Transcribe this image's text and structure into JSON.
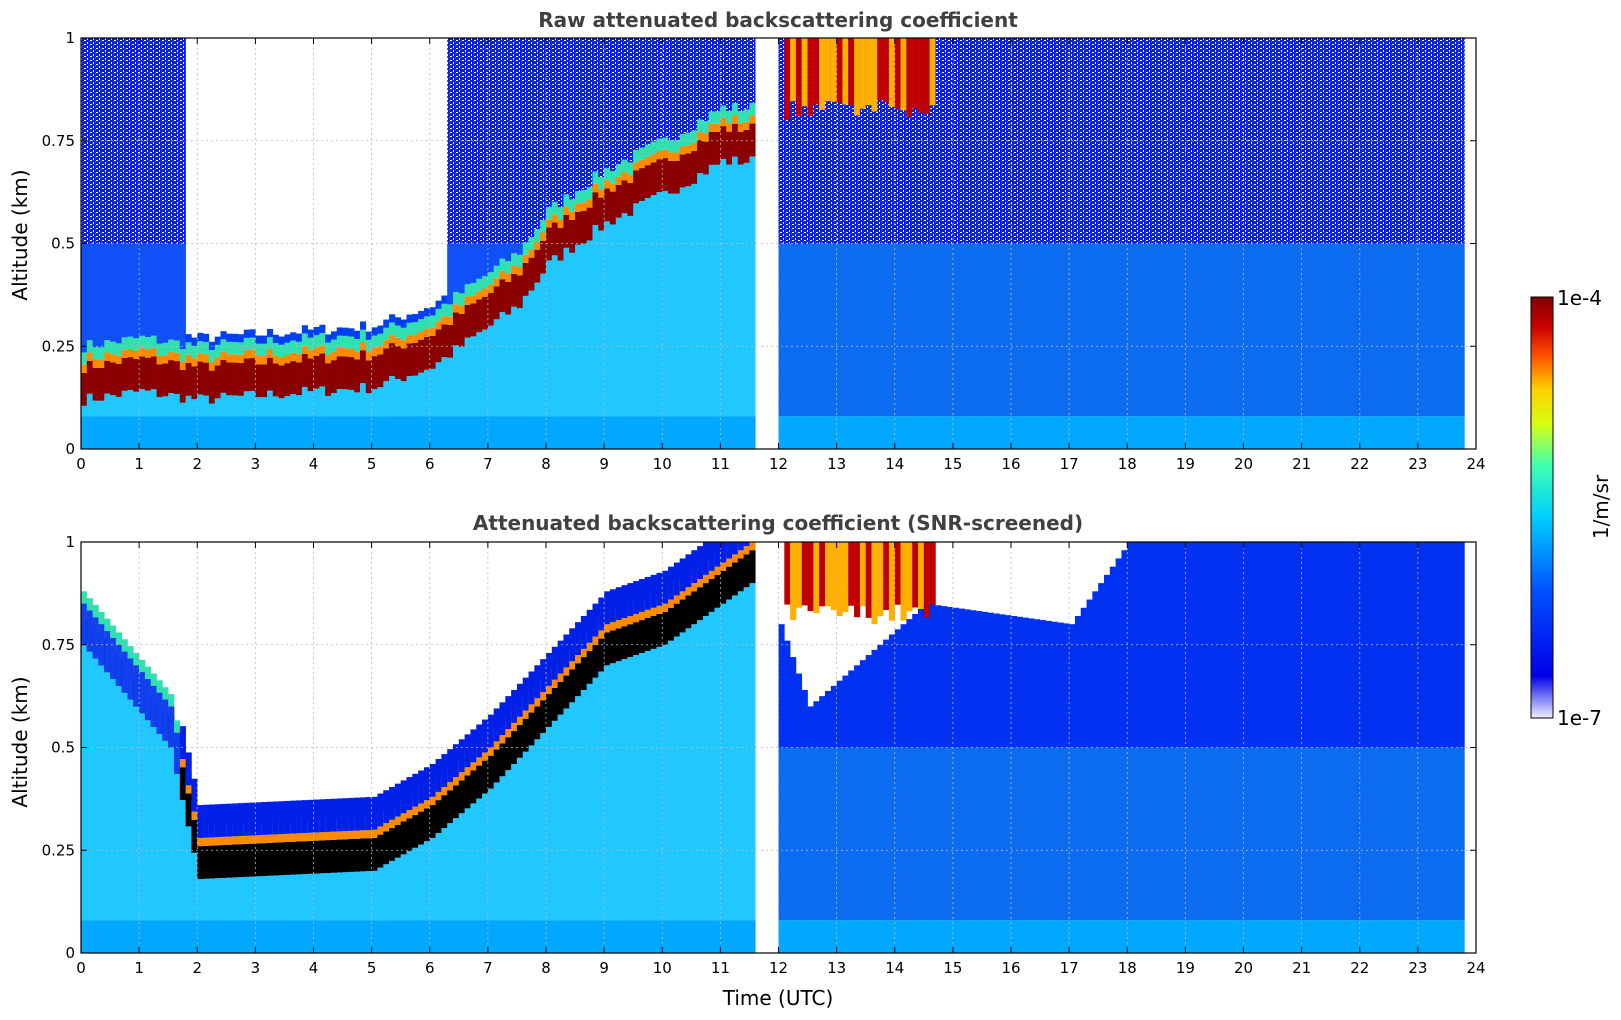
{
  "chart_data": [
    {
      "type": "heatmap",
      "title": "Raw attenuated backscattering coefficient",
      "xlabel": "",
      "ylabel": "Altitude (km)",
      "xlim": [
        0,
        24
      ],
      "ylim": [
        0,
        1
      ],
      "x_ticks": [
        "0",
        "1",
        "2",
        "3",
        "4",
        "5",
        "6",
        "7",
        "8",
        "9",
        "10",
        "11",
        "12",
        "13",
        "14",
        "15",
        "16",
        "17",
        "18",
        "19",
        "20",
        "21",
        "22",
        "23",
        "24"
      ],
      "y_ticks": [
        "0",
        "0.25",
        "0.5",
        "0.75",
        "1"
      ],
      "grid": true,
      "x_unit": "hours UTC",
      "data_gap_utc": [
        11.6,
        11.95
      ],
      "data_end_utc": 23.8,
      "layer_top_km": [
        {
          "time_utc": 0.0,
          "altitude_km": 0.22
        },
        {
          "time_utc": 1.0,
          "altitude_km": 0.24
        },
        {
          "time_utc": 2.0,
          "altitude_km": 0.22
        },
        {
          "time_utc": 3.0,
          "altitude_km": 0.23
        },
        {
          "time_utc": 4.0,
          "altitude_km": 0.24
        },
        {
          "time_utc": 5.0,
          "altitude_km": 0.25
        },
        {
          "time_utc": 6.0,
          "altitude_km": 0.3
        },
        {
          "time_utc": 7.0,
          "altitude_km": 0.4
        },
        {
          "time_utc": 7.5,
          "altitude_km": 0.45
        },
        {
          "time_utc": 8.0,
          "altitude_km": 0.55
        },
        {
          "time_utc": 9.0,
          "altitude_km": 0.65
        },
        {
          "time_utc": 10.0,
          "altitude_km": 0.72
        },
        {
          "time_utc": 11.0,
          "altitude_km": 0.8
        }
      ],
      "clean_region": {
        "time_utc": [
          1.8,
          6.2
        ],
        "altitude_km": [
          0.3,
          1.0
        ]
      },
      "raw": true
    },
    {
      "type": "heatmap",
      "title": "Attenuated backscattering coefficient (SNR-screened)",
      "xlabel": "Time (UTC)",
      "ylabel": "Altitude (km)",
      "xlim": [
        0,
        24
      ],
      "ylim": [
        0,
        1
      ],
      "x_ticks": [
        "0",
        "1",
        "2",
        "3",
        "4",
        "5",
        "6",
        "7",
        "8",
        "9",
        "10",
        "11",
        "12",
        "13",
        "14",
        "15",
        "16",
        "17",
        "18",
        "19",
        "20",
        "21",
        "22",
        "23",
        "24"
      ],
      "y_ticks": [
        "0",
        "0.25",
        "0.5",
        "0.75",
        "1"
      ],
      "grid": true,
      "data_gap_utc": [
        11.6,
        11.95
      ],
      "data_end_utc": 23.8,
      "screened_top_km": [
        {
          "time_utc": 0.0,
          "altitude_km": 0.85
        },
        {
          "time_utc": 1.5,
          "altitude_km": 0.6
        },
        {
          "time_utc": 2.0,
          "altitude_km": 0.28
        },
        {
          "time_utc": 5.0,
          "altitude_km": 0.3
        },
        {
          "time_utc": 6.0,
          "altitude_km": 0.38
        },
        {
          "time_utc": 7.0,
          "altitude_km": 0.5
        },
        {
          "time_utc": 8.0,
          "altitude_km": 0.65
        },
        {
          "time_utc": 9.0,
          "altitude_km": 0.8
        },
        {
          "time_utc": 10.0,
          "altitude_km": 0.85
        },
        {
          "time_utc": 11.5,
          "altitude_km": 1.0
        },
        {
          "time_utc": 12.5,
          "altitude_km": 0.6
        },
        {
          "time_utc": 14.5,
          "altitude_km": 0.85
        },
        {
          "time_utc": 17.0,
          "altitude_km": 0.8
        },
        {
          "time_utc": 18.0,
          "altitude_km": 1.0
        },
        {
          "time_utc": 23.8,
          "altitude_km": 1.0
        }
      ],
      "raw": false
    }
  ],
  "colorbar": {
    "label": "1/m/sr",
    "max_label": "1e-4",
    "min_label": "1e-7",
    "colormap": [
      "#e8e8ff",
      "#0000e0",
      "#0060ff",
      "#00d8ff",
      "#40ffb0",
      "#c8ff20",
      "#ffd000",
      "#ff5000",
      "#c00000",
      "#800000"
    ]
  }
}
